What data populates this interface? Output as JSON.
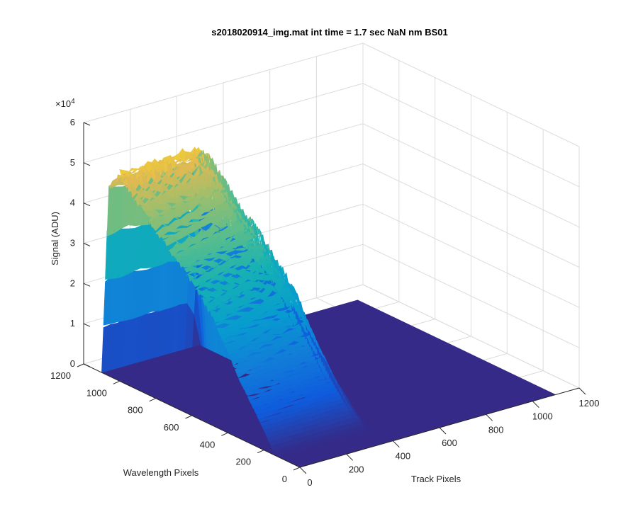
{
  "chart_data": {
    "type": "surface",
    "title": "s2018020914_img.mat int time = 1.7 sec  NaN nm BS01",
    "xlabel": "Track Pixels",
    "ylabel": "Wavelength Pixels",
    "zlabel": "Signal (ADU)",
    "z_exponent_label": "×10",
    "z_exponent": "4",
    "xlim": [
      0,
      1200
    ],
    "ylim": [
      0,
      1200
    ],
    "zlim": [
      0,
      60000
    ],
    "x_ticks": [
      "0",
      "200",
      "400",
      "600",
      "800",
      "1000",
      "1200"
    ],
    "y_ticks": [
      "0",
      "200",
      "400",
      "600",
      "800",
      "1000",
      "1200"
    ],
    "z_ticks": [
      "0",
      "1",
      "2",
      "3",
      "4",
      "5",
      "6"
    ],
    "grid": true,
    "colormap": "parula",
    "surface_extent": {
      "x": [
        0,
        1100
      ],
      "y": [
        0,
        1100
      ]
    },
    "signal_profile": {
      "description_units": "track pixel range of signal band and peak signal along wavelength",
      "track_start": 0,
      "track_end": 420,
      "peak_signal": 52000,
      "peak_wavelength": 1000,
      "signal_at_wavelength": [
        {
          "wavelength": 1100,
          "signal": 0
        },
        {
          "wavelength": 1060,
          "signal": 47000
        },
        {
          "wavelength": 1000,
          "signal": 52000
        },
        {
          "wavelength": 900,
          "signal": 47000
        },
        {
          "wavelength": 800,
          "signal": 42000
        },
        {
          "wavelength": 700,
          "signal": 38000
        },
        {
          "wavelength": 600,
          "signal": 33000
        },
        {
          "wavelength": 500,
          "signal": 28000
        },
        {
          "wavelength": 400,
          "signal": 20000
        },
        {
          "wavelength": 300,
          "signal": 12000
        },
        {
          "wavelength": 200,
          "signal": 5000
        },
        {
          "wavelength": 150,
          "signal": 1000
        },
        {
          "wavelength": 100,
          "signal": 0
        }
      ]
    }
  }
}
